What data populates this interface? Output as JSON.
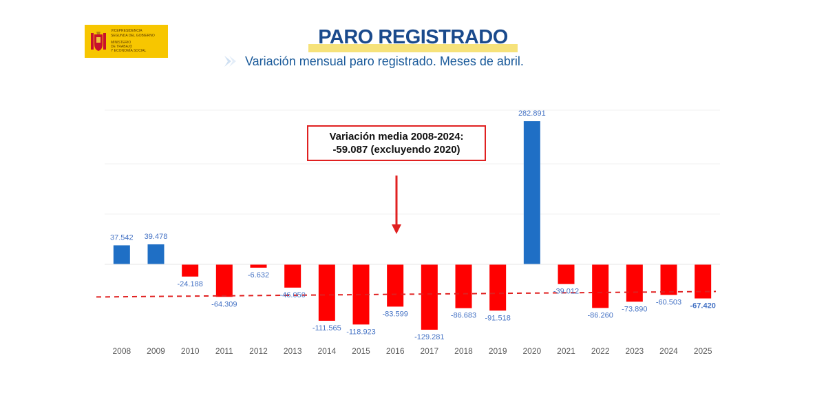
{
  "logo": {
    "text_line1": "VICEPRESIDENCIA",
    "text_line2": "SEGUNDA DEL GOBIERNO",
    "text_line3": "MINISTERIO",
    "text_line4": "DE TRABAJO",
    "text_line5": "Y ECONOMÍA SOCIAL",
    "color": "#f7c600"
  },
  "header": {
    "title": "PARO REGISTRADO",
    "subtitle": "Variación mensual paro registrado. Meses de abril.",
    "subtitle_icon": "chevron-right-icon"
  },
  "annotation": {
    "line1": "Variación media 2008-2024:",
    "line2": "-59.087 (excluyendo 2020)",
    "arrow_icon": "arrow-down-icon"
  },
  "chart_data": {
    "type": "bar",
    "categories": [
      "2008",
      "2009",
      "2010",
      "2011",
      "2012",
      "2013",
      "2014",
      "2015",
      "2016",
      "2017",
      "2018",
      "2019",
      "2020",
      "2021",
      "2022",
      "2023",
      "2024",
      "2025"
    ],
    "values": [
      37542,
      39478,
      -24188,
      -64309,
      -6632,
      -46050,
      -111565,
      -118923,
      -83599,
      -129281,
      -86683,
      -91518,
      282891,
      -39012,
      -86260,
      -73890,
      -60503,
      -67420
    ],
    "labels": [
      "37.542",
      "39.478",
      "-24.188",
      "-64.309",
      "-6.632",
      "-46.050",
      "-111.565",
      "-118.923",
      "-83.599",
      "-129.281",
      "-86.683",
      "-91.518",
      "282.891",
      "-39.012",
      "-86.260",
      "-73.890",
      "-60.503",
      "-67.420"
    ],
    "average_line": -59087,
    "colors": {
      "positive": "#1f6fc5",
      "negative": "#ff0000",
      "average_line": "#e02020",
      "label": "#4472c4"
    },
    "grid": true,
    "legend": "none"
  }
}
